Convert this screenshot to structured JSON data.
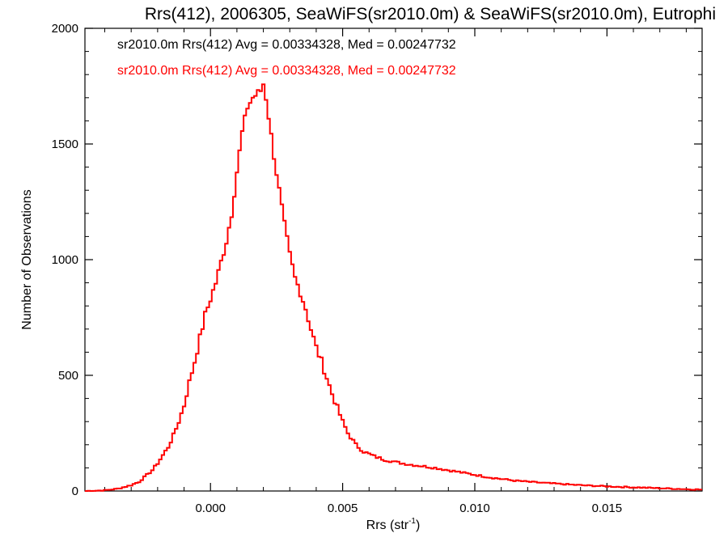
{
  "chart_data": {
    "type": "histogram",
    "title": "Rrs(412), 2006305, SeaWiFS(sr2010.0m) & SeaWiFS(sr2010.0m), Eutrophi",
    "xlabel": "Rrs (str",
    "xlabel_sup": "-1",
    "xlabel_close": ")",
    "ylabel": "Number of Observations",
    "xlim": [
      -0.00475,
      0.0186
    ],
    "ylim": [
      0,
      2000
    ],
    "xticks": [
      0.0,
      0.005,
      0.01,
      0.015
    ],
    "xtick_labels": [
      "0.000",
      "0.005",
      "0.010",
      "0.015"
    ],
    "yticks": [
      0,
      500,
      1000,
      1500,
      2000
    ],
    "ytick_labels": [
      "0",
      "500",
      "1000",
      "1500",
      "2000"
    ],
    "grid": false,
    "annotations": [
      {
        "text": "sr2010.0m Rrs(412) Avg = 0.00334328, Med = 0.00247732",
        "color": "#000000"
      },
      {
        "text": "sr2010.0m Rrs(412) Avg = 0.00334328, Med = 0.00247732",
        "color": "#ff0000"
      }
    ],
    "series": [
      {
        "color": "#ff0000",
        "x": [
          -0.0047,
          -0.004,
          -0.0035,
          -0.003,
          -0.0027,
          -0.0025,
          -0.0022,
          -0.002,
          -0.0018,
          -0.0016,
          -0.0014,
          -0.0012,
          -0.001,
          -0.0008,
          -0.0006,
          -0.0004,
          -0.0002,
          0.0,
          0.0002,
          0.0004,
          0.0006,
          0.0008,
          0.001,
          0.0012,
          0.0014,
          0.0016,
          0.0018,
          0.0019,
          0.002,
          0.0021,
          0.0022,
          0.0024,
          0.0026,
          0.0028,
          0.003,
          0.0032,
          0.0034,
          0.0036,
          0.0038,
          0.004,
          0.0042,
          0.0044,
          0.0046,
          0.0048,
          0.005,
          0.0052,
          0.0055,
          0.0058,
          0.0062,
          0.0066,
          0.007,
          0.0075,
          0.008,
          0.0085,
          0.009,
          0.0095,
          0.01,
          0.0105,
          0.011,
          0.0115,
          0.012,
          0.013,
          0.014,
          0.015,
          0.016,
          0.017,
          0.018,
          0.0186
        ],
        "values": [
          0,
          3,
          10,
          25,
          40,
          60,
          90,
          120,
          155,
          190,
          240,
          300,
          370,
          470,
          560,
          660,
          760,
          830,
          900,
          990,
          1080,
          1200,
          1380,
          1550,
          1660,
          1700,
          1720,
          1730,
          1760,
          1700,
          1620,
          1450,
          1300,
          1150,
          1020,
          920,
          860,
          790,
          700,
          620,
          560,
          490,
          420,
          360,
          300,
          250,
          200,
          170,
          150,
          135,
          125,
          115,
          108,
          100,
          90,
          80,
          70,
          60,
          52,
          45,
          40,
          32,
          25,
          20,
          16,
          12,
          8,
          6
        ]
      }
    ]
  }
}
